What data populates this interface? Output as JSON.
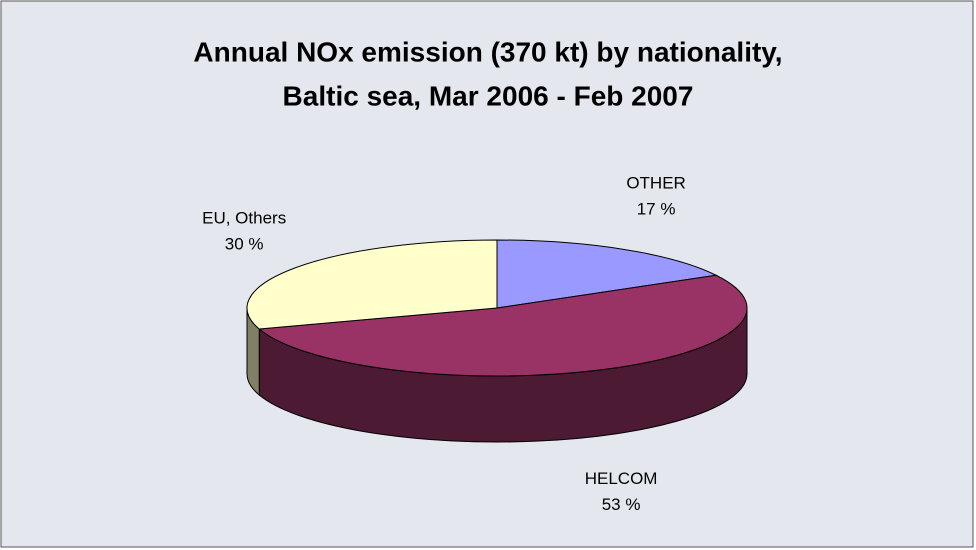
{
  "chart_data": {
    "type": "pie3d",
    "title": [
      "Annual NOx emission (370 kt) by nationality,",
      "Baltic sea, Mar 2006 - Feb 2007"
    ],
    "categories": [
      "OTHER",
      "HELCOM",
      "EU, Others"
    ],
    "values": [
      17,
      53,
      30
    ],
    "value_labels": [
      "17 %",
      "53 %",
      "30 %"
    ],
    "colors": [
      "#9999ff",
      "#993366",
      "#ffffcc"
    ]
  }
}
